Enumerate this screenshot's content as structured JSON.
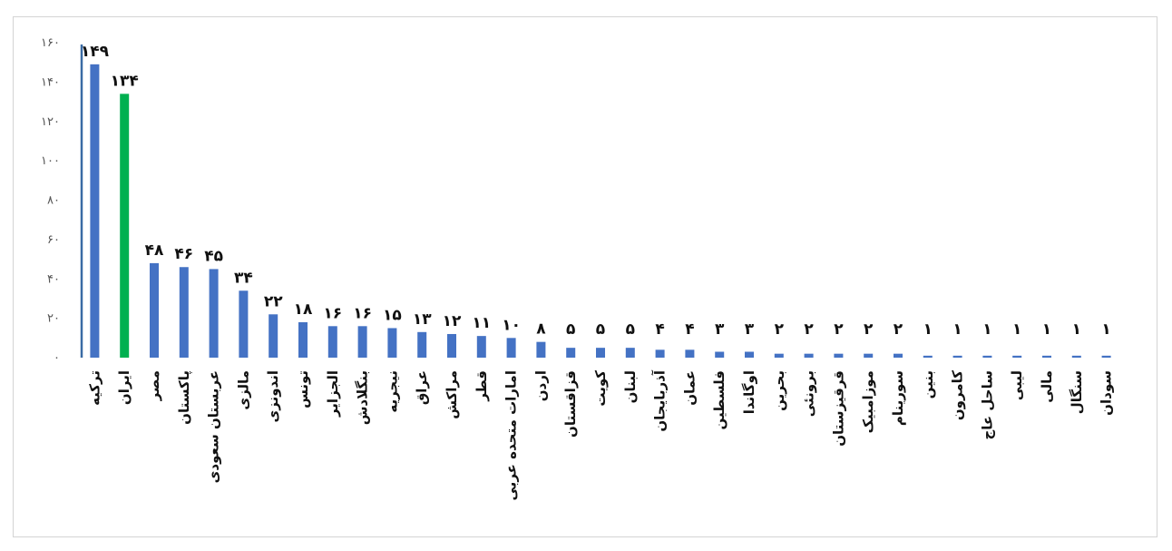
{
  "chart_data": {
    "type": "bar",
    "title": "",
    "xlabel": "",
    "ylabel": "",
    "ylim": [
      0,
      160
    ],
    "yticks": [
      0,
      20,
      40,
      60,
      80,
      100,
      120,
      140,
      160
    ],
    "ytick_labels": [
      "۰",
      "۲۰",
      "۴۰",
      "۶۰",
      "۸۰",
      "۱۰۰",
      "۱۲۰",
      "۱۴۰",
      "۱۶۰"
    ],
    "grid": false,
    "legend": "none",
    "colors": {
      "default": "#4472c4",
      "highlight": "#00b050",
      "axis": "#3a6ba5"
    },
    "highlight_index": 1,
    "categories": [
      "ترکیه",
      "ایران",
      "مصر",
      "پاکستان",
      "عربستان سعودی",
      "مالزی",
      "اندونزی",
      "تونس",
      "الجزایر",
      "بنگلادش",
      "نیجریه",
      "عراق",
      "مراکش",
      "قطر",
      "امارات متحده عربی",
      "اردن",
      "قزاقستان",
      "کویت",
      "لبنان",
      "آذربایجان",
      "عمان",
      "فلسطین",
      "اوگاندا",
      "بحرین",
      "برونئی",
      "قرقیزستان",
      "موزامبیک",
      "سورینام",
      "بنین",
      "کامرون",
      "ساحل عاج",
      "لیبی",
      "مالی",
      "سنگال",
      "سودان"
    ],
    "values": [
      149,
      134,
      48,
      46,
      45,
      34,
      22,
      18,
      16,
      16,
      15,
      13,
      12,
      11,
      10,
      8,
      5,
      5,
      5,
      4,
      4,
      3,
      3,
      2,
      2,
      2,
      2,
      2,
      1,
      1,
      1,
      1,
      1,
      1,
      1
    ],
    "value_labels": [
      "۱۴۹",
      "۱۳۴",
      "۴۸",
      "۴۶",
      "۴۵",
      "۳۴",
      "۲۲",
      "۱۸",
      "۱۶",
      "۱۶",
      "۱۵",
      "۱۳",
      "۱۲",
      "۱۱",
      "۱۰",
      "۸",
      "۵",
      "۵",
      "۵",
      "۴",
      "۴",
      "۳",
      "۳",
      "۲",
      "۲",
      "۲",
      "۲",
      "۲",
      "۱",
      "۱",
      "۱",
      "۱",
      "۱",
      "۱",
      "۱"
    ]
  }
}
